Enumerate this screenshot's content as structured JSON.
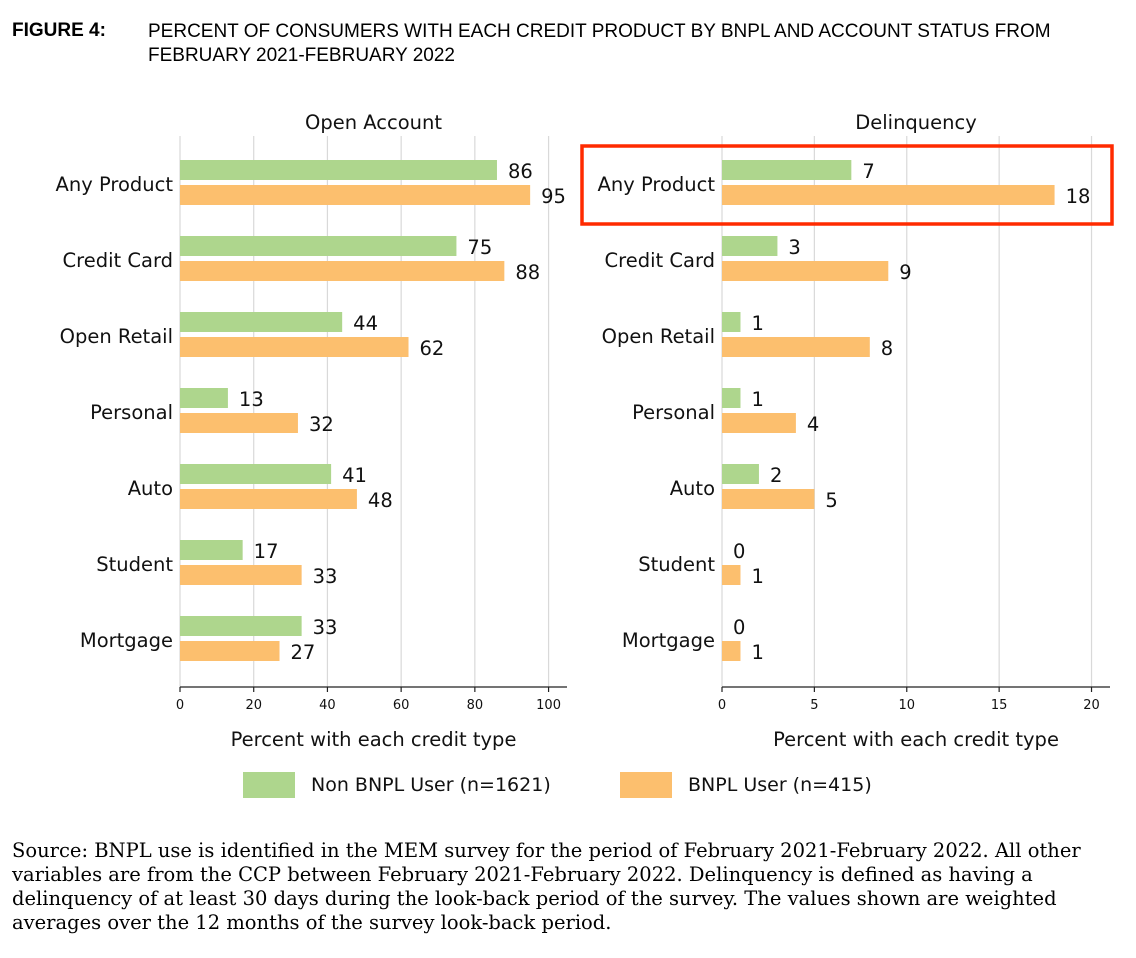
{
  "figure_label": "FIGURE 4:",
  "figure_title": "PERCENT OF CONSUMERS WITH EACH CREDIT PRODUCT BY BNPL AND ACCOUNT STATUS FROM FEBRUARY 2021-FEBRUARY 2022",
  "legend": [
    {
      "label": "Non BNPL User (n=1621)",
      "color": "#aed68d"
    },
    {
      "label": "BNPL User (n=415)",
      "color": "#fcbf6e"
    }
  ],
  "highlight": {
    "panel": "Delinquency",
    "category": "Any Product",
    "color": "#ff2a00"
  },
  "source_text": "Source: BNPL use is identified in the MEM survey for the period of February 2021-February 2022. All other variables are from the CCP between February 2021-February 2022. Delinquency is defined as having a delinquency of at least 30 days during the look-back period of the survey. The values shown are weighted averages over the 12 months of the survey look-back period.",
  "chart_data": [
    {
      "type": "bar",
      "orientation": "horizontal",
      "title": "Open Account",
      "xlabel": "Percent with each credit type",
      "categories": [
        "Any Product",
        "Credit Card",
        "Open Retail",
        "Personal",
        "Auto",
        "Student",
        "Mortgage"
      ],
      "series": [
        {
          "name": "Non BNPL User (n=1621)",
          "values": [
            86,
            75,
            44,
            13,
            41,
            17,
            33
          ]
        },
        {
          "name": "BNPL User (n=415)",
          "values": [
            95,
            88,
            62,
            32,
            48,
            33,
            27
          ]
        }
      ],
      "xlim": [
        0,
        105
      ],
      "xticks": [
        0,
        20,
        40,
        60,
        80,
        100
      ],
      "grid": true
    },
    {
      "type": "bar",
      "orientation": "horizontal",
      "title": "Delinquency",
      "xlabel": "Percent with each credit type",
      "categories": [
        "Any Product",
        "Credit Card",
        "Open Retail",
        "Personal",
        "Auto",
        "Student",
        "Mortgage"
      ],
      "series": [
        {
          "name": "Non BNPL User (n=1621)",
          "values": [
            7,
            3,
            1,
            1,
            2,
            0,
            0
          ]
        },
        {
          "name": "BNPL User (n=415)",
          "values": [
            18,
            9,
            8,
            4,
            5,
            1,
            1
          ]
        }
      ],
      "xlim": [
        0,
        21
      ],
      "xticks": [
        0,
        5,
        10,
        15,
        20
      ],
      "grid": true
    }
  ]
}
